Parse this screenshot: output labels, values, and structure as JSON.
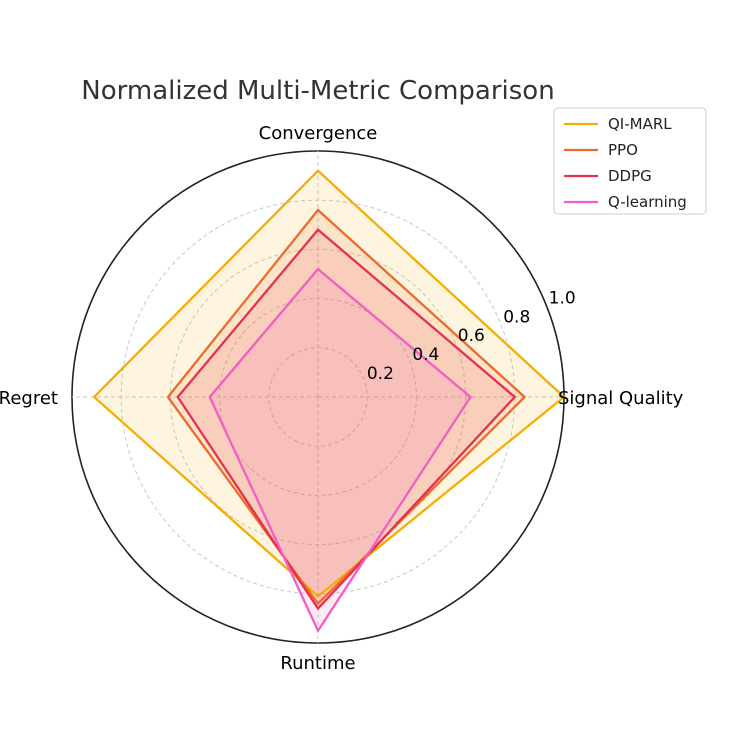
{
  "chart_data": {
    "type": "radar",
    "title": "Normalized Multi-Metric Comparison",
    "axes": [
      "Signal Quality",
      "Convergence",
      "Regret",
      "Runtime"
    ],
    "rlim": [
      0,
      1.0
    ],
    "rticks": [
      "0.2",
      "0.4",
      "0.6",
      "0.8",
      "1.0"
    ],
    "rtick_values": [
      0.2,
      0.4,
      0.6,
      0.8,
      1.0
    ],
    "grid": true,
    "legend_position": "top-right",
    "series": [
      {
        "name": "QI-MARL",
        "color": "#f5ad00",
        "values": [
          1.0,
          0.92,
          0.91,
          0.81
        ],
        "fill_opacity": 0.12
      },
      {
        "name": "PPO",
        "color": "#ec6a2c",
        "values": [
          0.84,
          0.76,
          0.61,
          0.84
        ],
        "fill_opacity": 0.12
      },
      {
        "name": "DDPG",
        "color": "#e63050",
        "values": [
          0.8,
          0.68,
          0.57,
          0.86
        ],
        "fill_opacity": 0.12
      },
      {
        "name": "Q-learning",
        "color": "#f25ec4",
        "values": [
          0.62,
          0.52,
          0.44,
          0.95
        ],
        "fill_opacity": 0.12
      }
    ]
  }
}
